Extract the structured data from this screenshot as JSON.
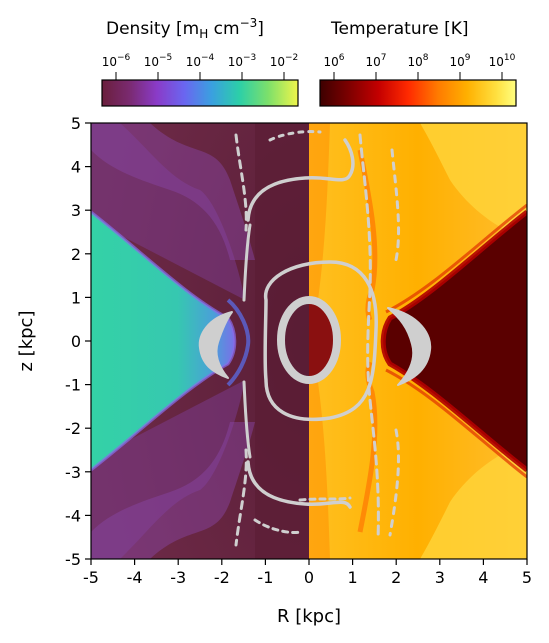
{
  "colorbars": {
    "density": {
      "title_prefix": "Density ",
      "title_unit_open": "[m",
      "title_unit_sub": "H",
      "title_unit_mid": " cm",
      "title_unit_sup": "−3",
      "title_unit_close": "]",
      "ticks": [
        {
          "base": "10",
          "exp": "−6"
        },
        {
          "base": "10",
          "exp": "−5"
        },
        {
          "base": "10",
          "exp": "−4"
        },
        {
          "base": "10",
          "exp": "−3"
        },
        {
          "base": "10",
          "exp": "−2"
        }
      ],
      "colormap": "plasma-like",
      "colors": [
        "#6a1f3c",
        "#7a2a70",
        "#8a3bc8",
        "#6a66f0",
        "#3aa0e0",
        "#2ccfa8",
        "#7ee06a",
        "#f0f54a"
      ]
    },
    "temperature": {
      "title": "Temperature [K]",
      "ticks": [
        {
          "base": "10",
          "exp": "6"
        },
        {
          "base": "10",
          "exp": "7"
        },
        {
          "base": "10",
          "exp": "8"
        },
        {
          "base": "10",
          "exp": "9"
        },
        {
          "base": "10",
          "exp": "10"
        }
      ],
      "colormap": "hot",
      "colors": [
        "#3d0000",
        "#7a0000",
        "#c40000",
        "#ff2a00",
        "#ff7a00",
        "#ffb000",
        "#ffe040",
        "#ffff80"
      ]
    }
  },
  "axes": {
    "xlabel": "R [kpc]",
    "ylabel": "z [kpc]",
    "xticks": [
      "-5",
      "-4",
      "-3",
      "-2",
      "-1",
      "0",
      "1",
      "2",
      "3",
      "4",
      "5"
    ],
    "yticks": [
      "5",
      "4",
      "3",
      "2",
      "1",
      "0",
      "-1",
      "-2",
      "-3",
      "-4",
      "-5"
    ]
  },
  "panels": {
    "left_quantity": "density",
    "right_quantity": "temperature",
    "contour_color": "#d0d0d0",
    "left_colors": {
      "background": "#6a2840",
      "cone": "#38d4a8",
      "cone_edge": "#6a8ae0",
      "purple": "#7a3a90"
    },
    "right_colors": {
      "background": "#ffb000",
      "hot": "#ffd030",
      "cone": "#5a0000",
      "cone_edge": "#b00000",
      "center": "#8a1010"
    }
  }
}
